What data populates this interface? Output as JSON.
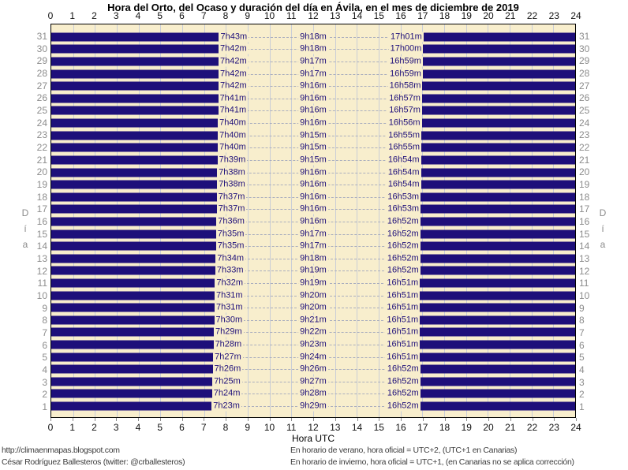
{
  "title": "Hora del Orto, del Ocaso y duración del día en Ávila, en el mes de diciembre de 2019",
  "x_axis": {
    "label": "Hora UTC"
  },
  "y_axis": {
    "label": "Día"
  },
  "footer": {
    "left_line1": "http://climaenmapas.blogspot.com",
    "left_line2": "César Rodríguez Ballesteros (twitter: @crballesteros)",
    "right_line1": "En horario de verano, hora oficial = UTC+2, (UTC+1 en Canarias)",
    "right_line2": "En horario de invierno, hora oficial = UTC+1, (en Canarias no se aplica corrección)"
  },
  "colors": {
    "night_bar": "#1e0f7a",
    "plot_background": "#f8eecd",
    "gridline": "#c9cdd6",
    "dash_line": "#aaaebe",
    "day_number": "#8c8c8c",
    "footer_text": "#3d3d3d"
  },
  "chart_data": {
    "type": "bar",
    "title": "Hora del Orto, del Ocaso y duración del día en Ávila, en el mes de diciembre de 2019",
    "xlabel": "Hora UTC",
    "ylabel": "Día",
    "xlim": [
      0,
      24
    ],
    "x_ticks": [
      0,
      1,
      2,
      3,
      4,
      5,
      6,
      7,
      8,
      9,
      10,
      11,
      12,
      13,
      14,
      15,
      16,
      17,
      18,
      19,
      20,
      21,
      22,
      23,
      24
    ],
    "grid": true,
    "days_top_to_bottom": [
      {
        "day": 31,
        "orto": "7h43m",
        "duracion": "9h18m",
        "ocaso": "17h01m"
      },
      {
        "day": 30,
        "orto": "7h42m",
        "duracion": "9h18m",
        "ocaso": "17h00m"
      },
      {
        "day": 29,
        "orto": "7h42m",
        "duracion": "9h17m",
        "ocaso": "16h59m"
      },
      {
        "day": 28,
        "orto": "7h42m",
        "duracion": "9h17m",
        "ocaso": "16h59m"
      },
      {
        "day": 27,
        "orto": "7h42m",
        "duracion": "9h16m",
        "ocaso": "16h58m"
      },
      {
        "day": 26,
        "orto": "7h41m",
        "duracion": "9h16m",
        "ocaso": "16h57m"
      },
      {
        "day": 25,
        "orto": "7h41m",
        "duracion": "9h16m",
        "ocaso": "16h57m"
      },
      {
        "day": 24,
        "orto": "7h40m",
        "duracion": "9h16m",
        "ocaso": "16h56m"
      },
      {
        "day": 23,
        "orto": "7h40m",
        "duracion": "9h15m",
        "ocaso": "16h55m"
      },
      {
        "day": 22,
        "orto": "7h40m",
        "duracion": "9h15m",
        "ocaso": "16h55m"
      },
      {
        "day": 21,
        "orto": "7h39m",
        "duracion": "9h15m",
        "ocaso": "16h54m"
      },
      {
        "day": 20,
        "orto": "7h38m",
        "duracion": "9h16m",
        "ocaso": "16h54m"
      },
      {
        "day": 19,
        "orto": "7h38m",
        "duracion": "9h16m",
        "ocaso": "16h54m"
      },
      {
        "day": 18,
        "orto": "7h37m",
        "duracion": "9h16m",
        "ocaso": "16h53m"
      },
      {
        "day": 17,
        "orto": "7h37m",
        "duracion": "9h16m",
        "ocaso": "16h53m"
      },
      {
        "day": 16,
        "orto": "7h36m",
        "duracion": "9h16m",
        "ocaso": "16h52m"
      },
      {
        "day": 15,
        "orto": "7h35m",
        "duracion": "9h17m",
        "ocaso": "16h52m"
      },
      {
        "day": 14,
        "orto": "7h35m",
        "duracion": "9h17m",
        "ocaso": "16h52m"
      },
      {
        "day": 13,
        "orto": "7h34m",
        "duracion": "9h18m",
        "ocaso": "16h52m"
      },
      {
        "day": 12,
        "orto": "7h33m",
        "duracion": "9h19m",
        "ocaso": "16h52m"
      },
      {
        "day": 11,
        "orto": "7h32m",
        "duracion": "9h19m",
        "ocaso": "16h51m"
      },
      {
        "day": 10,
        "orto": "7h31m",
        "duracion": "9h20m",
        "ocaso": "16h51m"
      },
      {
        "day": 9,
        "orto": "7h31m",
        "duracion": "9h20m",
        "ocaso": "16h51m"
      },
      {
        "day": 8,
        "orto": "7h30m",
        "duracion": "9h21m",
        "ocaso": "16h51m"
      },
      {
        "day": 7,
        "orto": "7h29m",
        "duracion": "9h22m",
        "ocaso": "16h51m"
      },
      {
        "day": 6,
        "orto": "7h28m",
        "duracion": "9h23m",
        "ocaso": "16h51m"
      },
      {
        "day": 5,
        "orto": "7h27m",
        "duracion": "9h24m",
        "ocaso": "16h51m"
      },
      {
        "day": 4,
        "orto": "7h26m",
        "duracion": "9h26m",
        "ocaso": "16h52m"
      },
      {
        "day": 3,
        "orto": "7h25m",
        "duracion": "9h27m",
        "ocaso": "16h52m"
      },
      {
        "day": 2,
        "orto": "7h24m",
        "duracion": "9h28m",
        "ocaso": "16h52m"
      },
      {
        "day": 1,
        "orto": "7h23m",
        "duracion": "9h29m",
        "ocaso": "16h52m"
      }
    ]
  }
}
